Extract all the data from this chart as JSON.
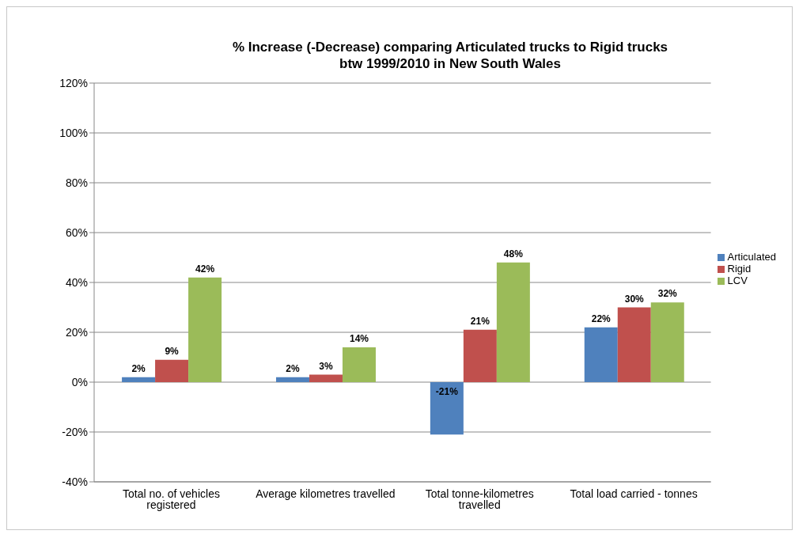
{
  "chart_data": {
    "type": "bar",
    "title": "% Increase (-Decrease) comparing Articulated trucks to Rigid trucks\nbtw 1999/2010 in New South Wales",
    "categories": [
      "Total no. of vehicles registered",
      "Average kilometres travelled",
      "Total tonne-kilometres travelled",
      "Total load carried - tonnes"
    ],
    "series": [
      {
        "name": "Articulated",
        "color": "#4f81bd",
        "values": [
          2,
          2,
          -21,
          22
        ],
        "value_labels": [
          "2%",
          "2%",
          "-21%",
          "22%"
        ]
      },
      {
        "name": "Rigid",
        "color": "#c0504d",
        "values": [
          9,
          3,
          21,
          30
        ],
        "value_labels": [
          "9%",
          "3%",
          "21%",
          "30%"
        ]
      },
      {
        "name": "LCV",
        "color": "#9bbb59",
        "values": [
          42,
          14,
          48,
          32
        ],
        "value_labels": [
          "42%",
          "14%",
          "48%",
          "32%"
        ]
      }
    ],
    "ylim": [
      -40,
      120
    ],
    "yticks": [
      {
        "value": -40,
        "label": "-40%"
      },
      {
        "value": -20,
        "label": "-20%"
      },
      {
        "value": 0,
        "label": "0%"
      },
      {
        "value": 20,
        "label": "20%"
      },
      {
        "value": 40,
        "label": "40%"
      },
      {
        "value": 60,
        "label": "60%"
      },
      {
        "value": 80,
        "label": "80%"
      },
      {
        "value": 100,
        "label": "100%"
      },
      {
        "value": 120,
        "label": "120%"
      }
    ],
    "grid": "y",
    "legend": "right"
  }
}
